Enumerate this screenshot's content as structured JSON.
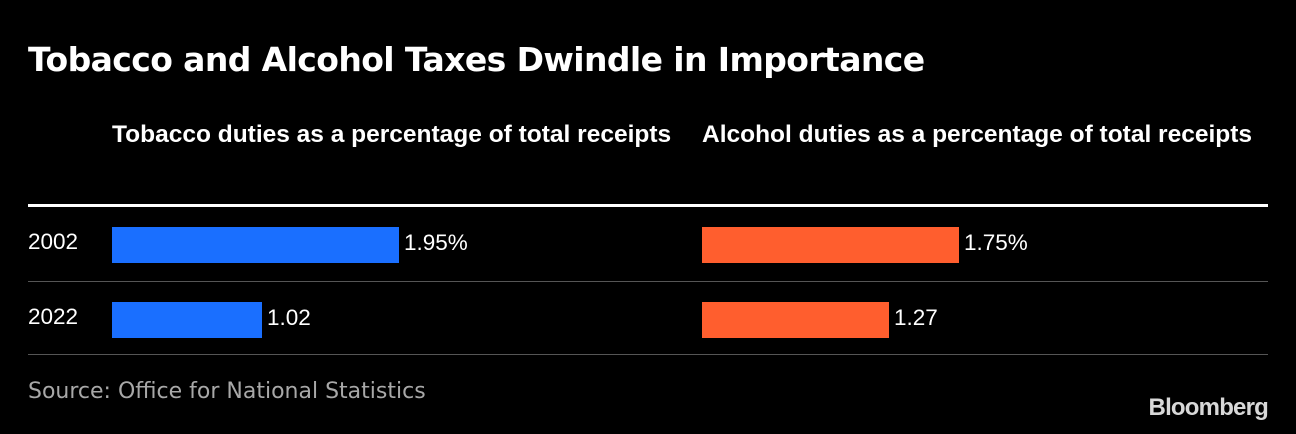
{
  "chart_data": {
    "type": "bar",
    "orientation": "horizontal",
    "title": "Tobacco and Alcohol Taxes Dwindle in Importance",
    "categories": [
      "2002",
      "2022"
    ],
    "panels": [
      {
        "header": "Tobacco duties as a percentage of total receipts",
        "color": "#1a6fff",
        "values": [
          1.95,
          1.02
        ],
        "value_labels": [
          "1.95%",
          "1.02"
        ]
      },
      {
        "header": "Alcohol duties as a percentage of total receipts",
        "color": "#ff5e2e",
        "values": [
          1.75,
          1.27
        ],
        "value_labels": [
          "1.75%",
          "1.27"
        ]
      }
    ],
    "grid": false,
    "legend": "none"
  },
  "source": "Source: Office for National Statistics",
  "brand": "Bloomberg"
}
